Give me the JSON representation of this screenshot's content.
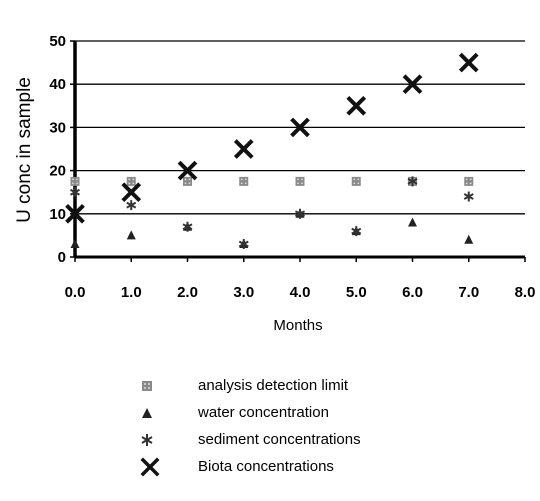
{
  "chart_data": {
    "type": "scatter",
    "xlabel": "Months",
    "ylabel": "U conc in sample",
    "xlim": [
      0,
      8
    ],
    "ylim": [
      0,
      50
    ],
    "x_ticks": [
      "0.0",
      "1.0",
      "2.0",
      "3.0",
      "4.0",
      "5.0",
      "6.0",
      "7.0",
      "8.0"
    ],
    "y_ticks": [
      "0",
      "10",
      "20",
      "30",
      "40",
      "50"
    ],
    "grid": "horizontal",
    "legend_position": "bottom",
    "series": [
      {
        "name": "analysis detection limit",
        "marker": "square-dotted",
        "color": "#8a8a8a",
        "x": [
          0,
          1,
          2,
          3,
          4,
          5,
          6,
          7
        ],
        "y": [
          17.5,
          17.5,
          17.5,
          17.5,
          17.5,
          17.5,
          17.5,
          17.5
        ]
      },
      {
        "name": "water concentration",
        "marker": "triangle",
        "color": "#222222",
        "x": [
          0,
          1,
          2,
          3,
          4,
          5,
          6,
          7
        ],
        "y": [
          3,
          5,
          7,
          3,
          10,
          6,
          8,
          4
        ]
      },
      {
        "name": "sediment concentrations",
        "marker": "asterisk",
        "color": "#333333",
        "x": [
          0,
          1,
          2,
          3,
          4,
          5,
          6,
          7
        ],
        "y": [
          15,
          12,
          7,
          3,
          10,
          6,
          17.5,
          14
        ]
      },
      {
        "name": "Biota concentrations",
        "marker": "x",
        "color": "#111111",
        "x": [
          0,
          1,
          2,
          3,
          4,
          5,
          6,
          7
        ],
        "y": [
          10,
          15,
          20,
          25,
          30,
          35,
          40,
          45
        ]
      }
    ]
  }
}
